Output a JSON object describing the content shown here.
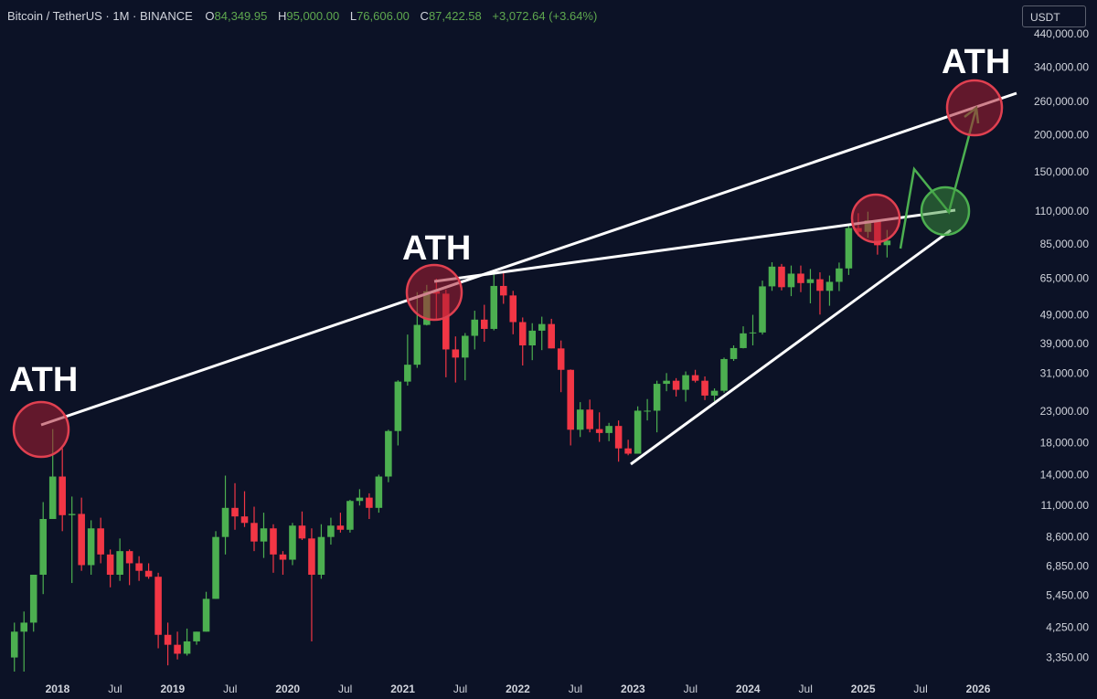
{
  "header": {
    "symbol": "Bitcoin / TetherUS · 1M · BINANCE",
    "open_label": "O",
    "open": "84,349.95",
    "high_label": "H",
    "high": "95,000.00",
    "low_label": "L",
    "low": "76,606.00",
    "close_label": "C",
    "close": "87,422.58",
    "change": "+3,072.64 (+3.64%)"
  },
  "currency_button": "USDT",
  "colors": {
    "background": "#0c1226",
    "up": "#4caf50",
    "down": "#f23645",
    "trendline": "#ffffff",
    "projection": "#4caf50",
    "ath_circle": "#e04050",
    "target_circle": "#4caf50"
  },
  "annotations": [
    "ATH",
    "ATH",
    "ATH"
  ],
  "chart_data": {
    "type": "candlestick",
    "y_scale": "log",
    "ylim": [
      3000,
      470000
    ],
    "y_ticks": [
      "440,000.00",
      "340,000.00",
      "260,000.00",
      "200,000.00",
      "150,000.00",
      "110,000.00",
      "85,000.00",
      "65,000.00",
      "49,000.00",
      "39,000.00",
      "31,000.00",
      "23,000.00",
      "18,000.00",
      "14,000.00",
      "11,000.00",
      "8,600.00",
      "6,850.00",
      "5,450.00",
      "4,250.00",
      "3,350.00"
    ],
    "x_ticks": [
      "2018",
      "Jul",
      "2019",
      "Jul",
      "2020",
      "Jul",
      "2021",
      "Jul",
      "2022",
      "Jul",
      "2023",
      "Jul",
      "2024",
      "Jul",
      "2025",
      "Jul",
      "2026"
    ],
    "x_range": [
      "2017-07",
      "2026-05"
    ],
    "candles": [
      [
        "2017-08",
        3350,
        4400,
        3000,
        4100
      ],
      [
        "2017-09",
        4100,
        4800,
        3000,
        4400
      ],
      [
        "2017-10",
        4400,
        6400,
        4100,
        6400
      ],
      [
        "2017-11",
        6400,
        11300,
        5500,
        9900
      ],
      [
        "2017-12",
        9900,
        20000,
        9900,
        13800
      ],
      [
        "2018-01",
        13800,
        17200,
        9000,
        10200
      ],
      [
        "2018-02",
        10200,
        11800,
        6000,
        10300
      ],
      [
        "2018-03",
        10300,
        11700,
        6600,
        6900
      ],
      [
        "2018-04",
        6900,
        9800,
        6400,
        9200
      ],
      [
        "2018-05",
        9200,
        10000,
        7000,
        7500
      ],
      [
        "2018-06",
        7500,
        7800,
        5800,
        6400
      ],
      [
        "2018-07",
        6400,
        8500,
        6100,
        7700
      ],
      [
        "2018-08",
        7700,
        7800,
        5900,
        7000
      ],
      [
        "2018-09",
        7000,
        7400,
        6100,
        6600
      ],
      [
        "2018-10",
        6600,
        7000,
        6200,
        6300
      ],
      [
        "2018-11",
        6300,
        6500,
        3600,
        4000
      ],
      [
        "2018-12",
        4000,
        4400,
        3150,
        3700
      ],
      [
        "2019-01",
        3700,
        4100,
        3300,
        3450
      ],
      [
        "2019-02",
        3450,
        4200,
        3400,
        3800
      ],
      [
        "2019-03",
        3800,
        4100,
        3700,
        4100
      ],
      [
        "2019-04",
        4100,
        5600,
        4100,
        5300
      ],
      [
        "2019-05",
        5300,
        9000,
        5300,
        8600
      ],
      [
        "2019-06",
        8600,
        13900,
        7500,
        10800
      ],
      [
        "2019-07",
        10800,
        13100,
        9100,
        10100
      ],
      [
        "2019-08",
        10100,
        12300,
        9300,
        9600
      ],
      [
        "2019-09",
        9600,
        10900,
        7700,
        8300
      ],
      [
        "2019-10",
        8300,
        10400,
        7300,
        9200
      ],
      [
        "2019-11",
        9200,
        9500,
        6500,
        7500
      ],
      [
        "2019-12",
        7500,
        7700,
        6400,
        7200
      ],
      [
        "2020-01",
        7200,
        9600,
        6900,
        9400
      ],
      [
        "2020-02",
        9400,
        10500,
        8400,
        8500
      ],
      [
        "2020-03",
        8500,
        9200,
        3800,
        6400
      ],
      [
        "2020-04",
        6400,
        9500,
        6200,
        8600
      ],
      [
        "2020-05",
        8600,
        10000,
        8100,
        9400
      ],
      [
        "2020-06",
        9400,
        10400,
        8900,
        9100
      ],
      [
        "2020-07",
        9100,
        11500,
        8900,
        11400
      ],
      [
        "2020-08",
        11400,
        12500,
        11000,
        11700
      ],
      [
        "2020-09",
        11700,
        12100,
        9900,
        10800
      ],
      [
        "2020-10",
        10800,
        14000,
        10400,
        13800
      ],
      [
        "2020-11",
        13800,
        19900,
        13200,
        19700
      ],
      [
        "2020-12",
        19700,
        29300,
        17600,
        29000
      ],
      [
        "2021-01",
        29000,
        41900,
        28100,
        33100
      ],
      [
        "2021-02",
        33100,
        58400,
        32300,
        45200
      ],
      [
        "2021-03",
        45200,
        61800,
        45000,
        58800
      ],
      [
        "2021-04",
        58800,
        64900,
        47000,
        57700
      ],
      [
        "2021-05",
        57700,
        59600,
        30000,
        37300
      ],
      [
        "2021-06",
        37300,
        41300,
        28800,
        35000
      ],
      [
        "2021-07",
        35000,
        42400,
        29300,
        41500
      ],
      [
        "2021-08",
        41500,
        50500,
        37300,
        47100
      ],
      [
        "2021-09",
        47100,
        52900,
        39600,
        43800
      ],
      [
        "2021-10",
        43800,
        67000,
        43300,
        61300
      ],
      [
        "2021-11",
        61300,
        69000,
        53300,
        56900
      ],
      [
        "2021-12",
        56900,
        59000,
        42000,
        46200
      ],
      [
        "2022-01",
        46200,
        47900,
        32900,
        38500
      ],
      [
        "2022-02",
        38500,
        45800,
        34300,
        43200
      ],
      [
        "2022-03",
        43200,
        48200,
        37100,
        45500
      ],
      [
        "2022-04",
        45500,
        47400,
        37600,
        37600
      ],
      [
        "2022-05",
        37600,
        40000,
        26700,
        31800
      ],
      [
        "2022-06",
        31800,
        31900,
        17600,
        19900
      ],
      [
        "2022-07",
        19900,
        24700,
        18800,
        23300
      ],
      [
        "2022-08",
        23300,
        25200,
        19500,
        20000
      ],
      [
        "2022-09",
        20000,
        22800,
        18100,
        19400
      ],
      [
        "2022-10",
        19400,
        21000,
        18200,
        20500
      ],
      [
        "2022-11",
        20500,
        21400,
        15500,
        17200
      ],
      [
        "2022-12",
        17200,
        18400,
        16300,
        16500
      ],
      [
        "2023-01",
        16500,
        23900,
        16500,
        23100
      ],
      [
        "2023-02",
        23100,
        25300,
        21400,
        23100
      ],
      [
        "2023-03",
        23100,
        29200,
        19500,
        28500
      ],
      [
        "2023-04",
        28500,
        31000,
        26900,
        29200
      ],
      [
        "2023-05",
        29200,
        29800,
        25800,
        27200
      ],
      [
        "2023-06",
        27200,
        31400,
        24800,
        30500
      ],
      [
        "2023-07",
        30500,
        31800,
        28800,
        29200
      ],
      [
        "2023-08",
        29200,
        30200,
        25100,
        26000
      ],
      [
        "2023-09",
        26000,
        27500,
        24900,
        27000
      ],
      [
        "2023-10",
        27000,
        35000,
        26600,
        34600
      ],
      [
        "2023-11",
        34600,
        38500,
        34100,
        37700
      ],
      [
        "2023-12",
        37700,
        44700,
        37600,
        42300
      ],
      [
        "2024-01",
        42300,
        48900,
        38500,
        42600
      ],
      [
        "2024-02",
        42600,
        63900,
        41900,
        61100
      ],
      [
        "2024-03",
        61100,
        73800,
        59000,
        71300
      ],
      [
        "2024-04",
        71300,
        72800,
        59200,
        60700
      ],
      [
        "2024-05",
        60700,
        71900,
        56600,
        67500
      ],
      [
        "2024-06",
        67500,
        71900,
        58400,
        62700
      ],
      [
        "2024-07",
        62700,
        70000,
        53500,
        64600
      ],
      [
        "2024-08",
        64600,
        68200,
        49000,
        59000
      ],
      [
        "2024-09",
        59000,
        66500,
        52500,
        63300
      ],
      [
        "2024-10",
        63300,
        73600,
        58900,
        70300
      ],
      [
        "2024-11",
        70300,
        99800,
        66800,
        96400
      ],
      [
        "2024-12",
        96400,
        108300,
        90500,
        93600
      ],
      [
        "2025-01",
        93600,
        109600,
        89300,
        102400
      ],
      [
        "2025-02",
        102400,
        102500,
        78300,
        84300
      ],
      [
        "2025-03",
        84350,
        95000,
        76606,
        87422
      ]
    ]
  }
}
